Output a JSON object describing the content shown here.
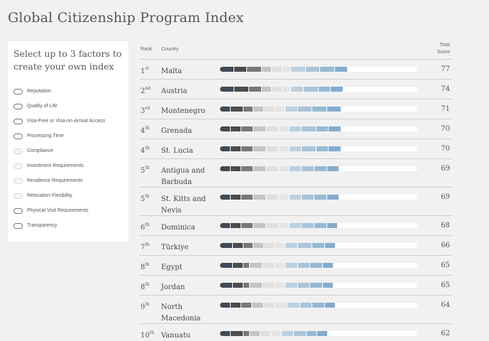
{
  "title": "Global Citizenship Program Index",
  "factor_panel": {
    "heading": "Select up to 3 factors to create your own index",
    "factors": [
      {
        "label": "Reputation",
        "style": "normal"
      },
      {
        "label": "Quality of Life",
        "style": "normal"
      },
      {
        "label": "Visa-Free or Visa-on-Arrival Access",
        "style": "normal"
      },
      {
        "label": "Processing Time",
        "style": "normal"
      },
      {
        "label": "Compliance",
        "style": "faint"
      },
      {
        "label": "Investment Requirements",
        "style": "faint"
      },
      {
        "label": "Residence Requirements",
        "style": "faint"
      },
      {
        "label": "Relocation Flexibility",
        "style": "faint"
      },
      {
        "label": "Physical Visit Requirements",
        "style": "normal"
      },
      {
        "label": "Transparency",
        "style": "normal"
      }
    ]
  },
  "table": {
    "headers": {
      "rank": "Rank",
      "country": "Country",
      "score": "Total Score"
    },
    "segment_colors": [
      "#3f4a56",
      "#4c4c4c",
      "#787878",
      "#c4c4c4",
      "#dfdfdf",
      "#e5e5e5",
      "#bcd0df",
      "#a9c4d9",
      "#95b9d4",
      "#82acd0"
    ],
    "rows": [
      {
        "rank_num": "1",
        "rank_suffix": "st",
        "country": "Malta",
        "score": "77",
        "segments": [
          0.07,
          0.06,
          0.07,
          0.05,
          0.05,
          0.04,
          0.07,
          0.07,
          0.07,
          0.06
        ]
      },
      {
        "rank_num": "2",
        "rank_suffix": "nd",
        "country": "Austria",
        "score": "74",
        "segments": [
          0.07,
          0.07,
          0.06,
          0.05,
          0.05,
          0.04,
          0.06,
          0.07,
          0.06,
          0.06
        ]
      },
      {
        "rank_num": "3",
        "rank_suffix": "rd",
        "country": "Montenegro",
        "score": "71",
        "segments": [
          0.05,
          0.06,
          0.05,
          0.05,
          0.05,
          0.05,
          0.06,
          0.07,
          0.07,
          0.07
        ]
      },
      {
        "rank_num": "4",
        "rank_suffix": "th",
        "country": "Grenada",
        "score": "70",
        "segments": [
          0.05,
          0.05,
          0.06,
          0.06,
          0.06,
          0.05,
          0.06,
          0.07,
          0.06,
          0.06
        ]
      },
      {
        "rank_num": "4",
        "rank_suffix": "th",
        "country": "St. Lucia",
        "score": "70",
        "segments": [
          0.05,
          0.05,
          0.06,
          0.06,
          0.06,
          0.05,
          0.06,
          0.07,
          0.06,
          0.06
        ]
      },
      {
        "rank_num": "5",
        "rank_suffix": "th",
        "country": "Antigua and Barbuda",
        "score": "69",
        "segments": [
          0.05,
          0.05,
          0.06,
          0.06,
          0.06,
          0.05,
          0.06,
          0.06,
          0.06,
          0.06
        ]
      },
      {
        "rank_num": "5",
        "rank_suffix": "th",
        "country": "St. Kitts and Nevis",
        "score": "69",
        "segments": [
          0.05,
          0.05,
          0.06,
          0.06,
          0.06,
          0.05,
          0.06,
          0.06,
          0.06,
          0.06
        ]
      },
      {
        "rank_num": "6",
        "rank_suffix": "th",
        "country": "Dominica",
        "score": "68",
        "segments": [
          0.05,
          0.05,
          0.06,
          0.06,
          0.06,
          0.05,
          0.06,
          0.06,
          0.06,
          0.05
        ]
      },
      {
        "rank_num": "7",
        "rank_suffix": "th",
        "country": "Türkiye",
        "score": "66",
        "segments": [
          0.06,
          0.05,
          0.05,
          0.05,
          0.05,
          0.05,
          0.06,
          0.07,
          0.06,
          0.05
        ]
      },
      {
        "rank_num": "8",
        "rank_suffix": "th",
        "country": "Egypt",
        "score": "65",
        "segments": [
          0.06,
          0.05,
          0.03,
          0.06,
          0.06,
          0.05,
          0.06,
          0.06,
          0.06,
          0.05
        ]
      },
      {
        "rank_num": "8",
        "rank_suffix": "th",
        "country": "Jordan",
        "score": "65",
        "segments": [
          0.06,
          0.05,
          0.03,
          0.06,
          0.06,
          0.05,
          0.06,
          0.06,
          0.06,
          0.05
        ]
      },
      {
        "rank_num": "9",
        "rank_suffix": "th",
        "country": "North Macedonia",
        "score": "64",
        "segments": [
          0.05,
          0.05,
          0.05,
          0.06,
          0.05,
          0.06,
          0.06,
          0.06,
          0.06,
          0.05
        ]
      },
      {
        "rank_num": "10",
        "rank_suffix": "th",
        "country": "Vanuatu",
        "score": "62",
        "segments": [
          0.05,
          0.06,
          0.03,
          0.05,
          0.05,
          0.05,
          0.06,
          0.06,
          0.05,
          0.05
        ]
      }
    ]
  }
}
